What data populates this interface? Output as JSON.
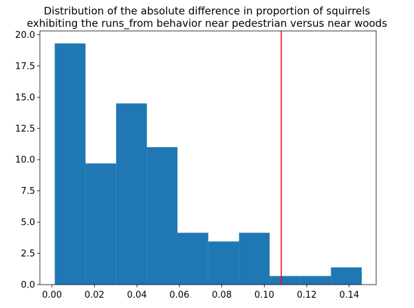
{
  "chart_data": {
    "type": "bar",
    "title_lines": [
      "Distribution of the absolute difference in proportion of squirrels",
      "exhibiting the runs_from behavior near pedestrian versus near woods"
    ],
    "xlabel": "",
    "ylabel": "",
    "xlim": [
      -0.0057,
      0.1527
    ],
    "ylim": [
      0,
      20.3
    ],
    "x_ticks": [
      0.0,
      0.02,
      0.04,
      0.06,
      0.08,
      0.1,
      0.12,
      0.14
    ],
    "x_tick_labels": [
      "0.00",
      "0.02",
      "0.04",
      "0.06",
      "0.08",
      "0.10",
      "0.12",
      "0.14"
    ],
    "y_ticks": [
      0,
      2.5,
      5,
      7.5,
      10,
      12.5,
      15,
      17.5,
      20
    ],
    "y_tick_labels": [
      "0.0",
      "2.5",
      "5.0",
      "7.5",
      "10.0",
      "12.5",
      "15.0",
      "17.5",
      "20.0"
    ],
    "bins": [
      {
        "x0": 0.0013,
        "x1": 0.0158,
        "value": 19.3
      },
      {
        "x0": 0.0158,
        "x1": 0.0302,
        "value": 9.7
      },
      {
        "x0": 0.0302,
        "x1": 0.0447,
        "value": 14.5
      },
      {
        "x0": 0.0447,
        "x1": 0.0591,
        "value": 11.0
      },
      {
        "x0": 0.0591,
        "x1": 0.0736,
        "value": 4.15
      },
      {
        "x0": 0.0736,
        "x1": 0.0881,
        "value": 3.45
      },
      {
        "x0": 0.0881,
        "x1": 0.1025,
        "value": 4.15
      },
      {
        "x0": 0.1025,
        "x1": 0.117,
        "value": 0.69
      },
      {
        "x0": 0.117,
        "x1": 0.1314,
        "value": 0.69
      },
      {
        "x0": 0.1314,
        "x1": 0.1459,
        "value": 1.38
      }
    ],
    "bar_color": "#1f77b4",
    "reference_line": {
      "x": 0.108,
      "color": "#ff0000"
    },
    "grid": false,
    "legend": "none"
  }
}
